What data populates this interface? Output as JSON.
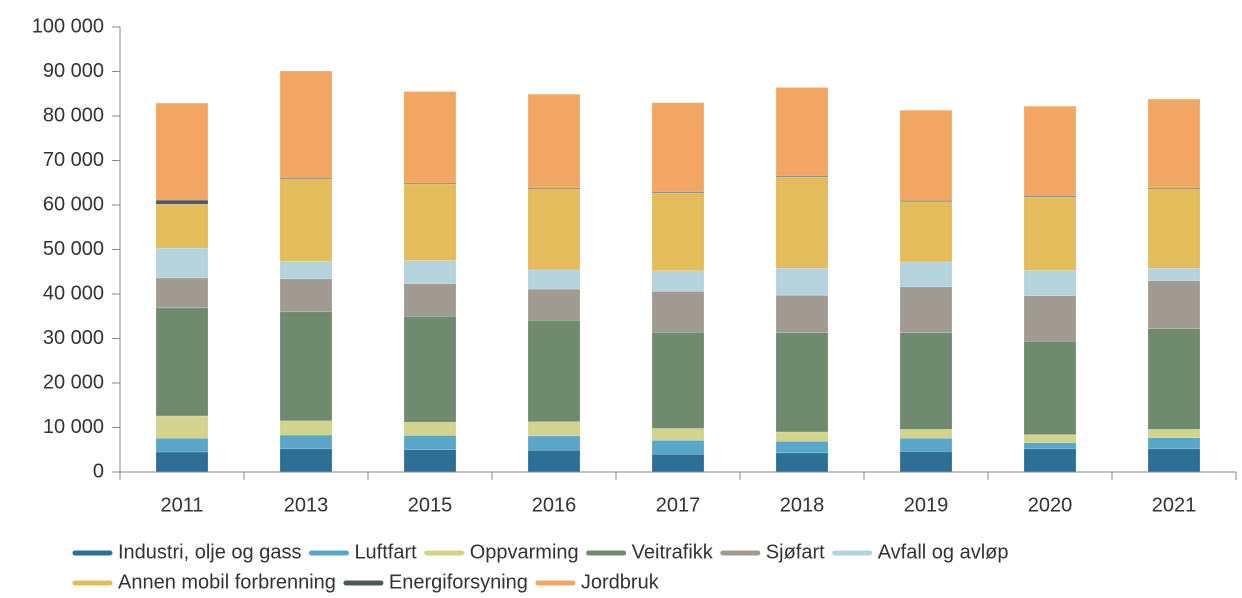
{
  "chart_data": {
    "type": "bar",
    "stacked": true,
    "grid": false,
    "legend": "bottom",
    "categories": [
      "2011",
      "2013",
      "2015",
      "2016",
      "2017",
      "2018",
      "2019",
      "2020",
      "2021"
    ],
    "ylim": [
      0,
      100000
    ],
    "yticks": [
      {
        "value": 0,
        "label": "0"
      },
      {
        "value": 10000,
        "label": "10 000"
      },
      {
        "value": 20000,
        "label": "20 000"
      },
      {
        "value": 30000,
        "label": "30 000"
      },
      {
        "value": 40000,
        "label": "40 000"
      },
      {
        "value": 50000,
        "label": "50 000"
      },
      {
        "value": 60000,
        "label": "60 000"
      },
      {
        "value": 70000,
        "label": "70 000"
      },
      {
        "value": 80000,
        "label": "80 000"
      },
      {
        "value": 90000,
        "label": "90 000"
      },
      {
        "value": 100000,
        "label": "100 000"
      }
    ],
    "series": [
      {
        "name": "Industri, olje og gass",
        "color": "#2e6f98",
        "values": [
          4500,
          5200,
          5000,
          4900,
          4000,
          4300,
          4600,
          5200,
          5200
        ]
      },
      {
        "name": "Luftfart",
        "color": "#5aa6c8",
        "values": [
          3100,
          3100,
          3200,
          3200,
          3100,
          2600,
          3000,
          1400,
          2500
        ]
      },
      {
        "name": "Oppvarming",
        "color": "#d2d48e",
        "values": [
          5000,
          3200,
          3000,
          3200,
          2700,
          2100,
          2000,
          1800,
          1900
        ]
      },
      {
        "name": "Veitrafikk",
        "color": "#6f8a6e",
        "values": [
          24300,
          24500,
          23800,
          22800,
          21600,
          22300,
          21700,
          21000,
          22600
        ]
      },
      {
        "name": "Sjøfart",
        "color": "#a09a90",
        "values": [
          6700,
          7400,
          7300,
          7000,
          9200,
          8400,
          10300,
          10200,
          10800
        ]
      },
      {
        "name": "Avfall og avløp",
        "color": "#b5d3dc",
        "values": [
          6700,
          4000,
          5200,
          4300,
          4600,
          6100,
          5600,
          5700,
          2800
        ]
      },
      {
        "name": "Annen mobil forbrenning",
        "color": "#e3bc5c",
        "values": [
          9900,
          18400,
          17200,
          18300,
          17500,
          20500,
          13600,
          16500,
          17900
        ]
      },
      {
        "name": "Energiforsyning",
        "color": "#4a5a5a",
        "values": [
          900,
          200,
          200,
          200,
          200,
          200,
          200,
          200,
          200
        ]
      },
      {
        "name": "Jordbruk",
        "color": "#f2a765",
        "values": [
          21800,
          24100,
          20600,
          21000,
          20100,
          19900,
          20300,
          20200,
          19900
        ]
      }
    ]
  }
}
